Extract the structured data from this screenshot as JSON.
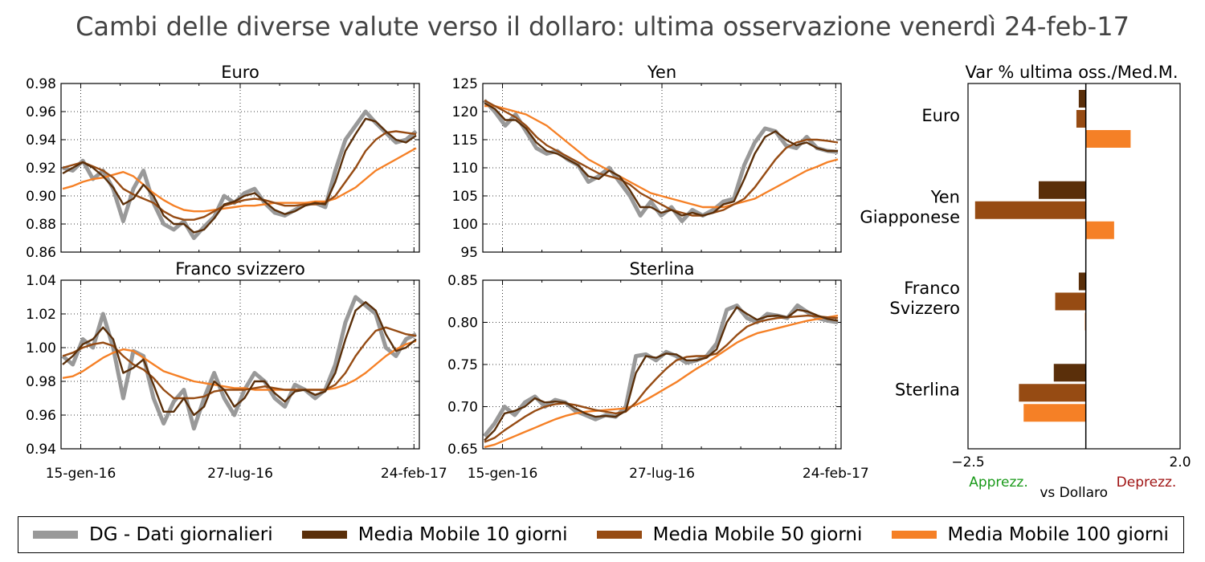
{
  "title": "Cambi delle diverse valute verso il dollaro: ultima osservazione venerdì 24-feb-17",
  "colors": {
    "daily": "#999999",
    "ma10": "#5a2f0a",
    "ma50": "#964b13",
    "ma100": "#f58026"
  },
  "legend": [
    {
      "key": "daily",
      "label": "DG - Dati giornalieri"
    },
    {
      "key": "ma10",
      "label": "Media Mobile 10 giorni"
    },
    {
      "key": "ma50",
      "label": "Media Mobile 50 giorni"
    },
    {
      "key": "ma100",
      "label": "Media Mobile 100 giorni"
    }
  ],
  "chart_data": [
    {
      "type": "line",
      "title": "Euro",
      "xticks": [
        "15-gen-16",
        "27-lug-16",
        "24-feb-17"
      ],
      "ylim": [
        0.86,
        0.98
      ],
      "yticks": [
        "0.86",
        "0.88",
        "0.90",
        "0.92",
        "0.94",
        "0.96",
        "0.98"
      ],
      "series": {
        "daily": [
          0.92,
          0.918,
          0.925,
          0.912,
          0.918,
          0.905,
          0.882,
          0.905,
          0.918,
          0.895,
          0.88,
          0.876,
          0.882,
          0.87,
          0.878,
          0.885,
          0.9,
          0.895,
          0.902,
          0.905,
          0.895,
          0.888,
          0.886,
          0.89,
          0.894,
          0.895,
          0.892,
          0.918,
          0.94,
          0.95,
          0.96,
          0.952,
          0.945,
          0.938,
          0.94,
          0.946
        ],
        "ma10": [
          0.916,
          0.92,
          0.924,
          0.92,
          0.914,
          0.906,
          0.894,
          0.898,
          0.908,
          0.9,
          0.886,
          0.88,
          0.88,
          0.874,
          0.876,
          0.884,
          0.894,
          0.896,
          0.9,
          0.902,
          0.896,
          0.89,
          0.887,
          0.889,
          0.893,
          0.895,
          0.894,
          0.91,
          0.932,
          0.944,
          0.955,
          0.953,
          0.946,
          0.94,
          0.938,
          0.943
        ],
        "ma50": [
          0.92,
          0.922,
          0.924,
          0.921,
          0.918,
          0.913,
          0.905,
          0.901,
          0.898,
          0.895,
          0.889,
          0.885,
          0.883,
          0.883,
          0.885,
          0.889,
          0.893,
          0.895,
          0.897,
          0.898,
          0.897,
          0.895,
          0.893,
          0.893,
          0.894,
          0.894,
          0.895,
          0.9,
          0.91,
          0.92,
          0.932,
          0.94,
          0.945,
          0.946,
          0.945,
          0.944
        ],
        "ma100": [
          0.905,
          0.907,
          0.91,
          0.912,
          0.913,
          0.915,
          0.917,
          0.914,
          0.908,
          0.902,
          0.897,
          0.893,
          0.89,
          0.889,
          0.889,
          0.89,
          0.891,
          0.892,
          0.893,
          0.893,
          0.894,
          0.895,
          0.895,
          0.895,
          0.895,
          0.896,
          0.896,
          0.898,
          0.902,
          0.906,
          0.912,
          0.918,
          0.922,
          0.926,
          0.93,
          0.934
        ]
      }
    },
    {
      "type": "line",
      "title": "Yen",
      "xticks": [
        "15-gen-16",
        "27-lug-16",
        "24-feb-17"
      ],
      "ylim": [
        95,
        125
      ],
      "yticks": [
        "95",
        "100",
        "105",
        "110",
        "115",
        "120",
        "125"
      ],
      "series": {
        "daily": [
          122.0,
          120.0,
          117.5,
          119.5,
          116.5,
          113.5,
          112.5,
          113.0,
          111.5,
          110.5,
          107.5,
          108.5,
          110.0,
          107.5,
          105.0,
          101.5,
          104.0,
          101.5,
          103.0,
          100.5,
          102.5,
          101.5,
          102.5,
          104.0,
          104.5,
          110.5,
          114.5,
          117.0,
          116.5,
          114.0,
          113.5,
          115.5,
          113.5,
          113.0,
          112.8
        ],
        "ma10": [
          121.5,
          120.5,
          118.5,
          118.5,
          117.0,
          114.5,
          113.0,
          112.5,
          111.5,
          110.5,
          108.5,
          108.0,
          109.5,
          108.5,
          106.0,
          103.0,
          103.0,
          102.0,
          102.5,
          101.5,
          102.0,
          101.5,
          102.0,
          103.5,
          104.0,
          108.0,
          112.5,
          115.5,
          116.5,
          115.0,
          114.0,
          114.5,
          113.5,
          113.0,
          113.0
        ],
        "ma50": [
          122.0,
          121.0,
          120.0,
          119.0,
          117.5,
          115.5,
          114.0,
          113.0,
          112.0,
          111.0,
          110.0,
          109.0,
          108.5,
          108.0,
          107.0,
          105.5,
          104.5,
          103.5,
          102.5,
          102.0,
          101.5,
          101.5,
          102.0,
          102.5,
          103.5,
          104.5,
          106.5,
          109.0,
          111.5,
          113.5,
          114.5,
          115.0,
          115.0,
          114.8,
          114.5
        ],
        "ma100": [
          121.0,
          121.0,
          120.5,
          120.0,
          119.5,
          118.5,
          117.5,
          116.0,
          114.5,
          113.0,
          111.5,
          110.5,
          109.5,
          108.5,
          107.5,
          106.5,
          105.5,
          105.0,
          104.5,
          104.0,
          103.5,
          103.0,
          103.0,
          103.0,
          103.5,
          104.0,
          104.5,
          105.5,
          106.5,
          107.5,
          108.5,
          109.5,
          110.2,
          111.0,
          111.5
        ]
      }
    },
    {
      "type": "line",
      "title": "Franco svizzero",
      "xticks": [
        "15-gen-16",
        "27-lug-16",
        "24-feb-17"
      ],
      "ylim": [
        0.94,
        1.04
      ],
      "yticks": [
        "0.94",
        "0.96",
        "0.98",
        "1.00",
        "1.02",
        "1.04"
      ],
      "series": {
        "daily": [
          0.995,
          0.99,
          1.005,
          1.0,
          1.02,
          1.0,
          0.97,
          0.998,
          0.995,
          0.97,
          0.955,
          0.968,
          0.975,
          0.952,
          0.97,
          0.985,
          0.97,
          0.96,
          0.975,
          0.985,
          0.98,
          0.97,
          0.965,
          0.978,
          0.975,
          0.97,
          0.975,
          0.99,
          1.015,
          1.03,
          1.025,
          1.02,
          1.0,
          0.995,
          1.005,
          1.008
        ],
        "ma10": [
          0.99,
          0.995,
          1.002,
          1.005,
          1.012,
          1.005,
          0.985,
          0.988,
          0.993,
          0.978,
          0.962,
          0.962,
          0.97,
          0.96,
          0.965,
          0.98,
          0.975,
          0.965,
          0.97,
          0.98,
          0.98,
          0.973,
          0.968,
          0.974,
          0.975,
          0.972,
          0.974,
          0.985,
          1.005,
          1.022,
          1.027,
          1.022,
          1.008,
          0.998,
          1.0,
          1.005
        ],
        "ma50": [
          0.995,
          0.997,
          1.0,
          1.002,
          1.003,
          1.001,
          0.995,
          0.99,
          0.987,
          0.982,
          0.975,
          0.97,
          0.97,
          0.97,
          0.971,
          0.974,
          0.975,
          0.975,
          0.975,
          0.976,
          0.977,
          0.976,
          0.975,
          0.975,
          0.975,
          0.975,
          0.975,
          0.978,
          0.985,
          0.995,
          1.003,
          1.01,
          1.012,
          1.01,
          1.008,
          1.007
        ],
        "ma100": [
          0.982,
          0.983,
          0.986,
          0.99,
          0.994,
          0.997,
          0.999,
          0.998,
          0.994,
          0.99,
          0.986,
          0.984,
          0.982,
          0.98,
          0.979,
          0.978,
          0.977,
          0.976,
          0.976,
          0.975,
          0.975,
          0.975,
          0.975,
          0.975,
          0.975,
          0.975,
          0.975,
          0.976,
          0.978,
          0.981,
          0.985,
          0.99,
          0.995,
          0.999,
          1.002,
          1.004
        ]
      }
    },
    {
      "type": "line",
      "title": "Sterlina",
      "xticks": [
        "15-gen-16",
        "27-lug-16",
        "24-feb-17"
      ],
      "ylim": [
        0.65,
        0.85
      ],
      "yticks": [
        "0.65",
        "0.70",
        "0.75",
        "0.80",
        "0.85"
      ],
      "series": {
        "daily": [
          0.665,
          0.68,
          0.7,
          0.69,
          0.705,
          0.712,
          0.7,
          0.708,
          0.705,
          0.695,
          0.69,
          0.685,
          0.69,
          0.688,
          0.7,
          0.76,
          0.762,
          0.755,
          0.765,
          0.76,
          0.752,
          0.755,
          0.76,
          0.775,
          0.815,
          0.82,
          0.805,
          0.8,
          0.81,
          0.808,
          0.805,
          0.82,
          0.812,
          0.805,
          0.802,
          0.8
        ],
        "ma10": [
          0.66,
          0.672,
          0.692,
          0.695,
          0.7,
          0.71,
          0.705,
          0.706,
          0.705,
          0.698,
          0.692,
          0.688,
          0.689,
          0.688,
          0.695,
          0.74,
          0.76,
          0.758,
          0.763,
          0.762,
          0.755,
          0.755,
          0.758,
          0.768,
          0.8,
          0.818,
          0.81,
          0.803,
          0.807,
          0.808,
          0.806,
          0.815,
          0.813,
          0.808,
          0.804,
          0.802
        ],
        "ma50": [
          0.658,
          0.663,
          0.672,
          0.68,
          0.688,
          0.695,
          0.7,
          0.703,
          0.704,
          0.702,
          0.699,
          0.696,
          0.694,
          0.692,
          0.694,
          0.705,
          0.72,
          0.733,
          0.745,
          0.755,
          0.759,
          0.76,
          0.76,
          0.763,
          0.773,
          0.785,
          0.795,
          0.8,
          0.803,
          0.805,
          0.806,
          0.807,
          0.808,
          0.807,
          0.806,
          0.805
        ],
        "ma100": [
          0.652,
          0.655,
          0.66,
          0.665,
          0.67,
          0.675,
          0.68,
          0.685,
          0.689,
          0.692,
          0.694,
          0.695,
          0.696,
          0.697,
          0.698,
          0.702,
          0.708,
          0.715,
          0.722,
          0.729,
          0.737,
          0.745,
          0.752,
          0.76,
          0.768,
          0.776,
          0.782,
          0.787,
          0.79,
          0.793,
          0.796,
          0.799,
          0.802,
          0.804,
          0.806,
          0.808
        ]
      }
    },
    {
      "type": "bar",
      "orientation": "horizontal",
      "title": "Var % ultima oss./Med.M.",
      "xlim": [
        -2.5,
        2.0
      ],
      "xticks": [
        "−2.5",
        "2.0"
      ],
      "annotations": {
        "left": "Apprezz.",
        "center": "vs Dollaro",
        "right": "Deprezz.",
        "left_color": "#1a9a1a",
        "right_color": "#a01414"
      },
      "categories": [
        {
          "label": [
            "Euro"
          ],
          "values": [
            -0.15,
            -0.2,
            0.95
          ]
        },
        {
          "label": [
            "Yen",
            "Giapponese"
          ],
          "values": [
            -1.0,
            -2.35,
            0.6
          ]
        },
        {
          "label": [
            "Franco",
            "Svizzero"
          ],
          "values": [
            -0.15,
            -0.65,
            -0.02
          ]
        },
        {
          "label": [
            "Sterlina"
          ],
          "values": [
            -0.68,
            -1.42,
            -1.32
          ]
        }
      ],
      "series_keys": [
        "ma10",
        "ma50",
        "ma100"
      ]
    }
  ]
}
